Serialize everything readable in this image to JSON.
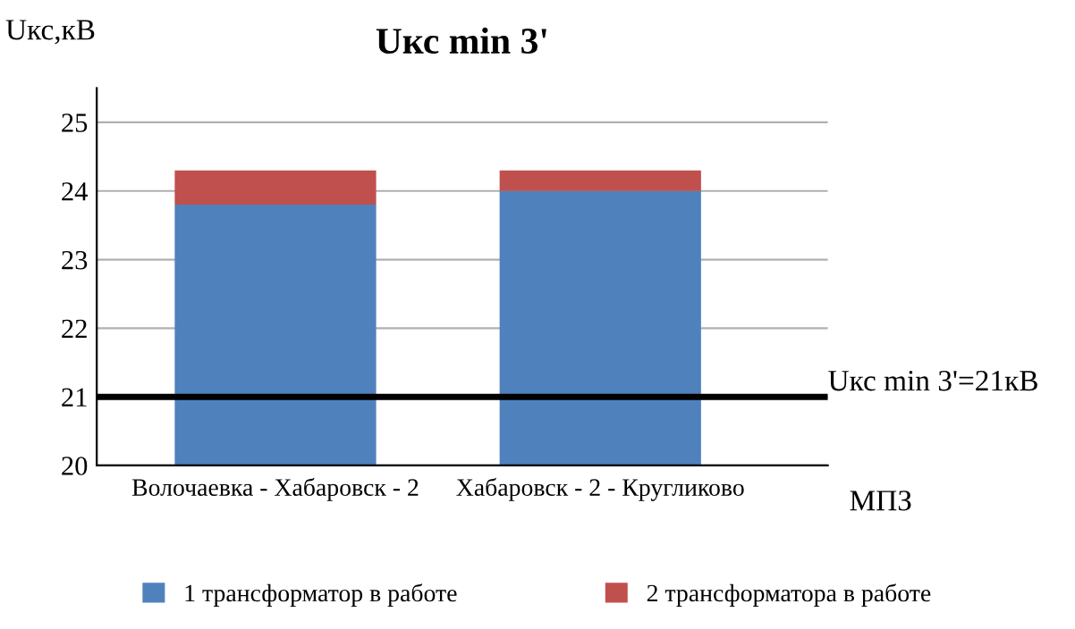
{
  "chart_data": {
    "type": "bar",
    "title": "Uкс min 3'",
    "ylabel": "Uкс,кВ",
    "xlabel": "МПЗ",
    "stacked": true,
    "categories": [
      "Волочаевка - Хабаровск - 2",
      "Хабаровск - 2 - Кругликово"
    ],
    "series": [
      {
        "name": "1 трансформатор в работе",
        "color": "#4f81bd",
        "values": [
          23.8,
          24.0
        ]
      },
      {
        "name": "2 трансформатора в работе",
        "color": "#c0504d",
        "values": [
          0.5,
          0.3
        ],
        "base": [
          23.8,
          24.0
        ]
      }
    ],
    "ylim": [
      20,
      25.5
    ],
    "yticks": [
      20,
      21,
      22,
      23,
      24,
      25
    ],
    "grid": "y",
    "legend": "bottom",
    "ref_lines": [
      {
        "axis": "y",
        "value": 21,
        "label": "Uкс min 3'=21кВ",
        "color": "#000000"
      }
    ]
  }
}
